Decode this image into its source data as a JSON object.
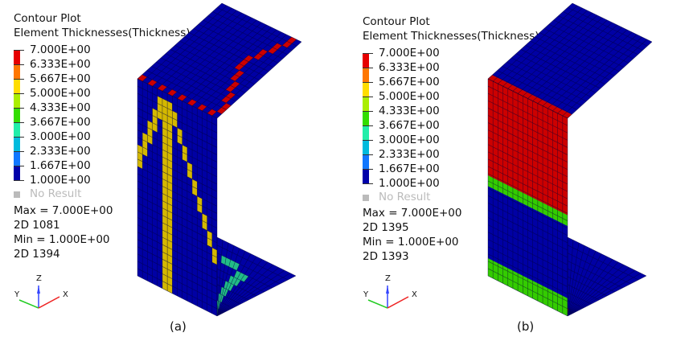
{
  "colors": {
    "mesh_blue": "#0000a4",
    "mesh_red": "#cc0000",
    "mesh_yellow": "#d4b800",
    "mesh_teal": "#22bb88",
    "mesh_lime": "#33cc00",
    "no_result": "#bbbbbb"
  },
  "legend_colors": [
    "#e60000",
    "#ff7700",
    "#ffdd00",
    "#aaee00",
    "#33dd00",
    "#22eeaa",
    "#00bbdd",
    "#1177ff",
    "#0000aa"
  ],
  "panels": [
    {
      "title": "Contour Plot",
      "subtitle": "Element Thicknesses(Thickness)",
      "levels": [
        "7.000E+00",
        "6.333E+00",
        "5.667E+00",
        "5.000E+00",
        "4.333E+00",
        "3.667E+00",
        "3.000E+00",
        "2.333E+00",
        "1.667E+00",
        "1.000E+00"
      ],
      "no_result": "No Result",
      "max": "Max =  7.000E+00",
      "max_id": "2D 1081",
      "min": "Min =  1.000E+00",
      "min_id": "2D 1394",
      "axes": {
        "z": "Z",
        "y": "Y",
        "x": "X"
      },
      "caption": "(a)"
    },
    {
      "title": "Contour Plot",
      "subtitle": "Element Thicknesses(Thickness)",
      "levels": [
        "7.000E+00",
        "6.333E+00",
        "5.667E+00",
        "5.000E+00",
        "4.333E+00",
        "3.667E+00",
        "3.000E+00",
        "2.333E+00",
        "1.667E+00",
        "1.000E+00"
      ],
      "no_result": "No Result",
      "max": "Max =  7.000E+00",
      "max_id": "2D 1395",
      "min": "Min =  1.000E+00",
      "min_id": "2D 1393",
      "axes": {
        "z": "Z",
        "y": "Y",
        "x": "X"
      },
      "caption": "(b)"
    }
  ]
}
